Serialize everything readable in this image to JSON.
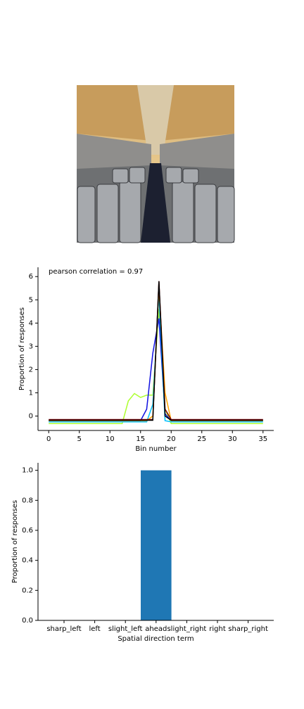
{
  "chart_data": [
    {
      "type": "line",
      "annotation": "pearson correlation = 0.97",
      "x_label": "Bin number",
      "y_label": "Proportion of responses",
      "x": [
        0,
        1,
        2,
        3,
        4,
        5,
        6,
        7,
        8,
        9,
        10,
        11,
        12,
        13,
        14,
        15,
        16,
        17,
        18,
        19,
        20,
        21,
        22,
        23,
        24,
        25,
        26,
        27,
        28,
        29,
        30,
        31,
        32,
        33,
        34,
        35
      ],
      "xlim": [
        -1.75,
        36.75
      ],
      "xticks": [
        0,
        5,
        10,
        15,
        20,
        25,
        30,
        35
      ],
      "ylim": [
        -0.62,
        6.4
      ],
      "yticks": [
        0,
        1,
        2,
        3,
        4,
        5,
        6
      ],
      "series": [
        {
          "color": "#adff2f",
          "values": [
            -0.32,
            -0.32,
            -0.32,
            -0.32,
            -0.32,
            -0.32,
            -0.32,
            -0.32,
            -0.32,
            -0.32,
            -0.32,
            -0.32,
            -0.32,
            0.65,
            0.97,
            0.8,
            0.9,
            0.9,
            4.6,
            0.3,
            -0.32,
            -0.32,
            -0.32,
            -0.32,
            -0.32,
            -0.32,
            -0.32,
            -0.32,
            -0.32,
            -0.32,
            -0.32,
            -0.32,
            -0.32,
            -0.32,
            -0.32,
            -0.32
          ]
        },
        {
          "color": "#1010e0",
          "values": [
            -0.2,
            -0.2,
            -0.2,
            -0.2,
            -0.2,
            -0.2,
            -0.2,
            -0.2,
            -0.2,
            -0.2,
            -0.2,
            -0.2,
            -0.2,
            -0.2,
            -0.2,
            -0.2,
            0.3,
            2.7,
            4.2,
            0.1,
            -0.2,
            -0.2,
            -0.2,
            -0.2,
            -0.2,
            -0.2,
            -0.2,
            -0.2,
            -0.2,
            -0.2,
            -0.2,
            -0.2,
            -0.2,
            -0.2,
            -0.2,
            -0.2
          ]
        },
        {
          "color": "#00bfff",
          "values": [
            -0.25,
            -0.25,
            -0.25,
            -0.25,
            -0.25,
            -0.25,
            -0.25,
            -0.25,
            -0.25,
            -0.25,
            -0.25,
            -0.25,
            -0.25,
            -0.25,
            -0.25,
            -0.25,
            -0.25,
            0.5,
            5.2,
            -0.2,
            -0.25,
            -0.25,
            -0.25,
            -0.25,
            -0.25,
            -0.25,
            -0.25,
            -0.25,
            -0.25,
            -0.25,
            -0.25,
            -0.25,
            -0.25,
            -0.25,
            -0.25,
            -0.25
          ]
        },
        {
          "color": "#ffa500",
          "values": [
            -0.2,
            -0.2,
            -0.2,
            -0.2,
            -0.2,
            -0.2,
            -0.2,
            -0.2,
            -0.2,
            -0.2,
            -0.2,
            -0.2,
            -0.2,
            -0.2,
            -0.2,
            -0.2,
            -0.2,
            0.0,
            5.5,
            1.0,
            -0.2,
            -0.2,
            -0.2,
            -0.2,
            -0.2,
            -0.2,
            -0.2,
            -0.2,
            -0.2,
            -0.2,
            -0.2,
            -0.2,
            -0.2,
            -0.2,
            -0.2,
            -0.2
          ]
        },
        {
          "color": "#800000",
          "values": [
            -0.15,
            -0.15,
            -0.15,
            -0.15,
            -0.15,
            -0.15,
            -0.15,
            -0.15,
            -0.15,
            -0.15,
            -0.15,
            -0.15,
            -0.15,
            -0.15,
            -0.15,
            -0.15,
            -0.15,
            -0.15,
            5.8,
            0.3,
            -0.15,
            -0.15,
            -0.15,
            -0.15,
            -0.15,
            -0.15,
            -0.15,
            -0.15,
            -0.15,
            -0.15,
            -0.15,
            -0.15,
            -0.15,
            -0.15,
            -0.15,
            -0.15
          ]
        },
        {
          "color": "#000000",
          "values": [
            -0.18,
            -0.18,
            -0.18,
            -0.18,
            -0.18,
            -0.18,
            -0.18,
            -0.18,
            -0.18,
            -0.18,
            -0.18,
            -0.18,
            -0.18,
            -0.18,
            -0.18,
            -0.18,
            -0.18,
            -0.18,
            5.8,
            0.0,
            -0.18,
            -0.18,
            -0.18,
            -0.18,
            -0.18,
            -0.18,
            -0.18,
            -0.18,
            -0.18,
            -0.18,
            -0.18,
            -0.18,
            -0.18,
            -0.18,
            -0.18,
            -0.18
          ]
        }
      ]
    },
    {
      "type": "bar",
      "x_label": "Spatial direction term",
      "y_label": "Proportion of responses",
      "categories": [
        "sharp_left",
        "left",
        "slight_left",
        "ahead",
        "slight_right",
        "right",
        "sharp_right"
      ],
      "values": [
        0,
        0,
        0,
        1,
        0,
        0,
        0
      ],
      "color": "#1f77b4",
      "ylim": [
        0,
        1.05
      ],
      "yticks": [
        {
          "value": 0,
          "label": "0.0"
        },
        {
          "value": 0.2,
          "label": "0.2"
        },
        {
          "value": 0.4,
          "label": "0.4"
        },
        {
          "value": 0.6,
          "label": "0.6"
        },
        {
          "value": 0.8,
          "label": "0.8"
        },
        {
          "value": 1,
          "label": "1.0"
        }
      ]
    }
  ]
}
